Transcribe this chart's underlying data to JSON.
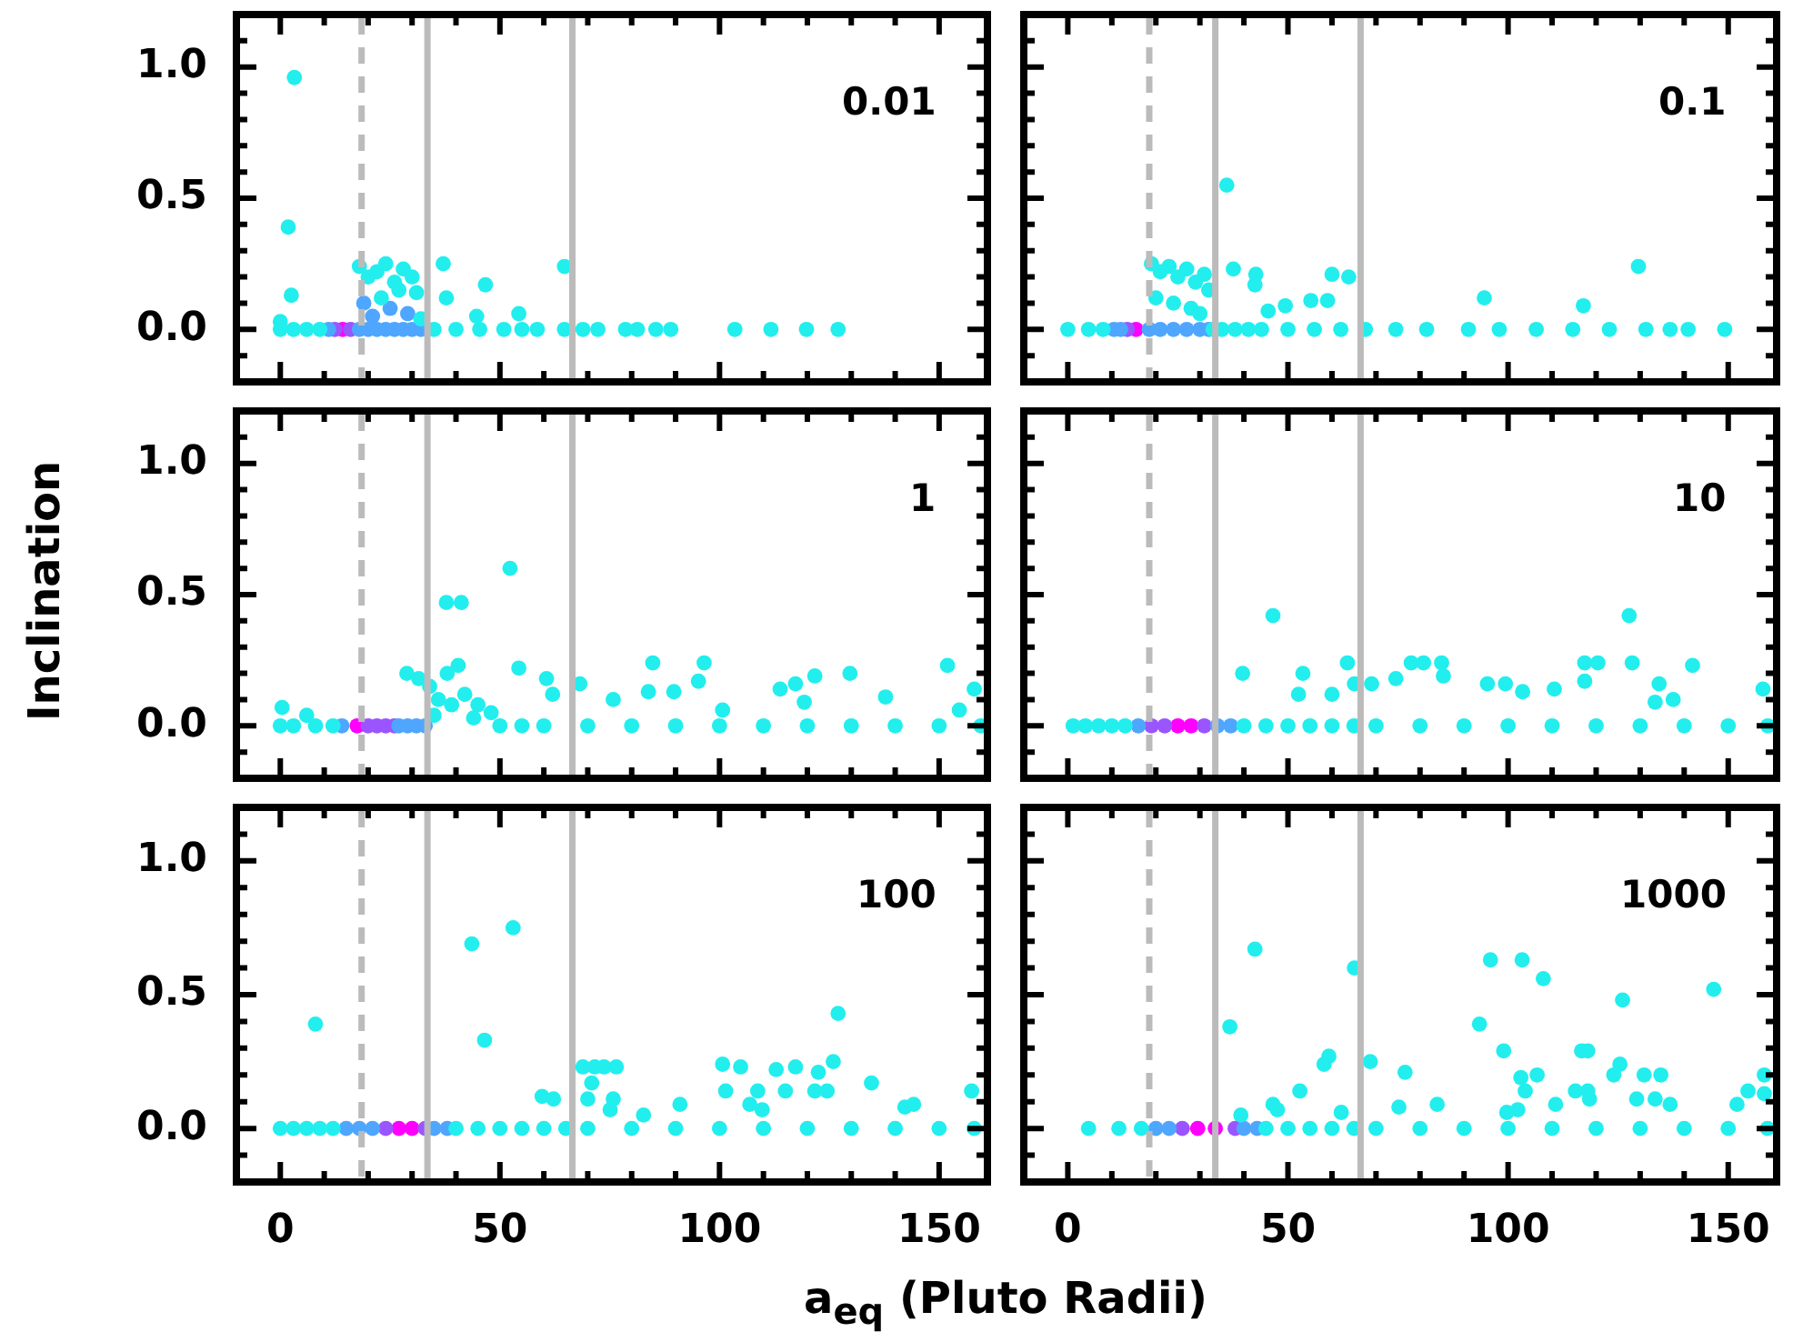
{
  "chart_data": [
    {
      "type": "scatter",
      "annotations": [
        "0.01"
      ],
      "xlim": [
        -10,
        161
      ],
      "ylim": [
        -0.2,
        1.2
      ],
      "xticks": [
        0,
        {
          "value": 10,
          "label": null
        },
        {
          "value": 20,
          "label": null
        },
        {
          "value": 30,
          "label": null
        },
        {
          "value": 40,
          "label": null
        },
        50,
        {
          "value": 60,
          "label": null
        },
        {
          "value": 70,
          "label": null
        },
        {
          "value": 80,
          "label": null
        },
        {
          "value": 90,
          "label": null
        },
        100,
        {
          "value": 110,
          "label": null
        },
        {
          "value": 120,
          "label": null
        },
        {
          "value": 130,
          "label": null
        },
        {
          "value": 140,
          "label": null
        },
        150
      ],
      "yticks": [
        {
          "value": -0.1,
          "label": null
        },
        {
          "value": 0,
          "label": "0.0"
        },
        {
          "value": 0.1,
          "label": null
        },
        {
          "value": 0.2,
          "label": null
        },
        {
          "value": 0.3,
          "label": null
        },
        {
          "value": 0.4,
          "label": null
        },
        {
          "value": 0.5,
          "label": "0.5"
        },
        {
          "value": 0.6,
          "label": null
        },
        {
          "value": 0.7,
          "label": null
        },
        {
          "value": 0.8,
          "label": null
        },
        {
          "value": 0.9,
          "label": null
        },
        {
          "value": 1,
          "label": "1.0"
        },
        {
          "value": 1.1,
          "label": null
        }
      ],
      "tick_labels": "y",
      "marker": "circle",
      "legend": false,
      "ref_lines": [
        {
          "axis": "x",
          "value": 18.5,
          "color": "#bbbbbb",
          "line_style": "dashed"
        },
        {
          "axis": "x",
          "value": 33.5,
          "color": "#bbbbbb"
        },
        {
          "axis": "x",
          "value": 66.5,
          "color": "#bbbbbb"
        }
      ],
      "series": [
        {
          "color": "#22eeee",
          "x": [
            3.2,
            1.8,
            2.5,
            0,
            0,
            3,
            6,
            9,
            18,
            20,
            22,
            24,
            26,
            28,
            30,
            31,
            23,
            27,
            32,
            37.1,
            37.8,
            46.7,
            44.7,
            54.3,
            64.7,
            35,
            40,
            45.4,
            50.9,
            55,
            58.5,
            64.7,
            68.9,
            72.3,
            78.6,
            81.3,
            85.5,
            88.9,
            103.5,
            111.7,
            119.8,
            127
          ],
          "values": [
            0.96,
            0.39,
            0.13,
            0.03,
            0,
            0,
            0,
            0,
            0.24,
            0.2,
            0.22,
            0.25,
            0.18,
            0.23,
            0.2,
            0.14,
            0.12,
            0.15,
            0.04,
            0.25,
            0.12,
            0.17,
            0.05,
            0.06,
            0.24,
            0,
            0,
            0,
            0,
            0,
            0,
            0,
            0,
            0,
            0,
            0,
            0,
            0,
            0,
            0,
            0,
            0
          ]
        },
        {
          "color": "#4fa6ff",
          "x": [
            11,
            18,
            20,
            22,
            24,
            26,
            28,
            30,
            32,
            19,
            21,
            25,
            29
          ],
          "values": [
            0,
            0,
            0,
            0,
            0,
            0,
            0,
            0,
            0,
            0.1,
            0.05,
            0.08,
            0.06
          ]
        },
        {
          "color": "#9a55ff",
          "x": [
            12.4,
            16
          ],
          "values": [
            0,
            0
          ]
        },
        {
          "color": "#ff00ff",
          "x": [
            14.2
          ],
          "values": [
            0
          ]
        }
      ]
    },
    {
      "type": "scatter",
      "annotations": [
        "0.1"
      ],
      "xlim": [
        -10,
        161
      ],
      "ylim": [
        -0.2,
        1.2
      ],
      "xticks": [
        0,
        {
          "value": 10,
          "label": null
        },
        {
          "value": 20,
          "label": null
        },
        {
          "value": 30,
          "label": null
        },
        {
          "value": 40,
          "label": null
        },
        50,
        {
          "value": 60,
          "label": null
        },
        {
          "value": 70,
          "label": null
        },
        {
          "value": 80,
          "label": null
        },
        {
          "value": 90,
          "label": null
        },
        100,
        {
          "value": 110,
          "label": null
        },
        {
          "value": 120,
          "label": null
        },
        {
          "value": 130,
          "label": null
        },
        {
          "value": 140,
          "label": null
        },
        150
      ],
      "yticks": [
        {
          "value": -0.1,
          "label": null
        },
        0,
        {
          "value": 0.1,
          "label": null
        },
        {
          "value": 0.2,
          "label": null
        },
        {
          "value": 0.3,
          "label": null
        },
        {
          "value": 0.4,
          "label": null
        },
        0.5,
        {
          "value": 0.6,
          "label": null
        },
        {
          "value": 0.7,
          "label": null
        },
        {
          "value": 0.8,
          "label": null
        },
        {
          "value": 0.9,
          "label": null
        },
        1,
        {
          "value": 1.1,
          "label": null
        }
      ],
      "tick_labels": false,
      "marker": "circle",
      "legend": false,
      "ref_lines": [
        {
          "axis": "x",
          "value": 18.5,
          "color": "#bbbbbb",
          "line_style": "dashed"
        },
        {
          "axis": "x",
          "value": 33.5,
          "color": "#bbbbbb"
        },
        {
          "axis": "x",
          "value": 66.5,
          "color": "#bbbbbb"
        }
      ],
      "series": [
        {
          "color": "#22eeee",
          "x": [
            0,
            4.7,
            8,
            36.1,
            37.6,
            42.7,
            42.5,
            49.4,
            55.2,
            60,
            63.8,
            59,
            45.5,
            94.6,
            117.1,
            129.6,
            149.2,
            19,
            21,
            23,
            25,
            27,
            29,
            31,
            32,
            20,
            24,
            28,
            30,
            33,
            35,
            38,
            41,
            44,
            50,
            56,
            62,
            67.6,
            74.5,
            81.5,
            91,
            98,
            106.4,
            114.7,
            123,
            131.3,
            136.8,
            140.9
          ],
          "values": [
            0,
            0,
            0,
            0.55,
            0.23,
            0.21,
            0.17,
            0.09,
            0.11,
            0.21,
            0.2,
            0.11,
            0.07,
            0.12,
            0.09,
            0.24,
            0,
            0.25,
            0.22,
            0.24,
            0.2,
            0.23,
            0.18,
            0.21,
            0.15,
            0.12,
            0.1,
            0.08,
            0.06,
            0,
            0,
            0,
            0,
            0,
            0,
            0,
            0,
            0,
            0,
            0,
            0,
            0,
            0,
            0,
            0,
            0,
            0,
            0
          ]
        },
        {
          "color": "#4fa6ff",
          "x": [
            10.5,
            12,
            18.5,
            21,
            24,
            27,
            30,
            32
          ],
          "values": [
            0,
            0,
            0,
            0,
            0,
            0,
            0,
            0
          ]
        },
        {
          "color": "#9a55ff",
          "x": [
            13.5
          ],
          "values": [
            0
          ]
        },
        {
          "color": "#ff00ff",
          "x": [
            15.5
          ],
          "values": [
            0
          ]
        }
      ]
    },
    {
      "type": "scatter",
      "annotations": [
        "1"
      ],
      "ylabel": "Inclination",
      "xlim": [
        -10,
        161
      ],
      "ylim": [
        -0.2,
        1.2
      ],
      "xticks": [
        0,
        {
          "value": 10,
          "label": null
        },
        {
          "value": 20,
          "label": null
        },
        {
          "value": 30,
          "label": null
        },
        {
          "value": 40,
          "label": null
        },
        50,
        {
          "value": 60,
          "label": null
        },
        {
          "value": 70,
          "label": null
        },
        {
          "value": 80,
          "label": null
        },
        {
          "value": 90,
          "label": null
        },
        100,
        {
          "value": 110,
          "label": null
        },
        {
          "value": 120,
          "label": null
        },
        {
          "value": 130,
          "label": null
        },
        {
          "value": 140,
          "label": null
        },
        150
      ],
      "yticks": [
        {
          "value": -0.1,
          "label": null
        },
        {
          "value": 0,
          "label": "0.0"
        },
        {
          "value": 0.1,
          "label": null
        },
        {
          "value": 0.2,
          "label": null
        },
        {
          "value": 0.3,
          "label": null
        },
        {
          "value": 0.4,
          "label": null
        },
        {
          "value": 0.5,
          "label": "0.5"
        },
        {
          "value": 0.6,
          "label": null
        },
        {
          "value": 0.7,
          "label": null
        },
        {
          "value": 0.8,
          "label": null
        },
        {
          "value": 0.9,
          "label": null
        },
        {
          "value": 1,
          "label": "1.0"
        },
        {
          "value": 1.1,
          "label": null
        }
      ],
      "tick_labels": "y",
      "marker": "circle",
      "legend": false,
      "ref_lines": [
        {
          "axis": "x",
          "value": 18.5,
          "color": "#bbbbbb",
          "line_style": "dashed"
        },
        {
          "axis": "x",
          "value": 33.5,
          "color": "#bbbbbb"
        },
        {
          "axis": "x",
          "value": 66.5,
          "color": "#bbbbbb"
        }
      ],
      "series": [
        {
          "color": "#22eeee",
          "x": [
            0.4,
            6,
            0,
            3,
            8,
            12,
            52.3,
            37.8,
            41.2,
            28.8,
            31.5,
            40.5,
            54.3,
            60.6,
            62,
            68.2,
            84.8,
            96.5,
            95.2,
            89.6,
            83.8,
            75.8,
            100.7,
            113.8,
            117.3,
            121.7,
            129.7,
            119.3,
            137.8,
            151.9,
            158,
            154.6,
            34,
            36,
            38,
            42,
            45,
            48,
            35,
            39,
            44,
            50,
            55,
            60,
            70,
            80,
            90,
            100,
            110,
            120,
            130,
            140,
            150,
            159.5
          ],
          "values": [
            0.07,
            0.04,
            0,
            0,
            0,
            0,
            0.6,
            0.47,
            0.47,
            0.2,
            0.18,
            0.23,
            0.22,
            0.18,
            0.12,
            0.16,
            0.24,
            0.24,
            0.17,
            0.13,
            0.13,
            0.1,
            0.06,
            0.14,
            0.16,
            0.19,
            0.2,
            0.09,
            0.11,
            0.23,
            0.14,
            0.06,
            0.15,
            0.1,
            0.2,
            0.12,
            0.08,
            0.05,
            0.04,
            0.08,
            0.03,
            0,
            0,
            0,
            0,
            0,
            0,
            0,
            0,
            0,
            0,
            0,
            0,
            0
          ]
        },
        {
          "color": "#4fa6ff",
          "x": [
            14,
            27,
            29,
            31,
            33
          ],
          "values": [
            0,
            0,
            0,
            0,
            0
          ]
        },
        {
          "color": "#9a55ff",
          "x": [
            20,
            22,
            24,
            26
          ],
          "values": [
            0,
            0,
            0,
            0
          ]
        },
        {
          "color": "#ff00ff",
          "x": [
            17.5
          ],
          "values": [
            0
          ]
        }
      ]
    },
    {
      "type": "scatter",
      "annotations": [
        "10"
      ],
      "xlim": [
        -10,
        161
      ],
      "ylim": [
        -0.2,
        1.2
      ],
      "xticks": [
        0,
        {
          "value": 10,
          "label": null
        },
        {
          "value": 20,
          "label": null
        },
        {
          "value": 30,
          "label": null
        },
        {
          "value": 40,
          "label": null
        },
        50,
        {
          "value": 60,
          "label": null
        },
        {
          "value": 70,
          "label": null
        },
        {
          "value": 80,
          "label": null
        },
        {
          "value": 90,
          "label": null
        },
        100,
        {
          "value": 110,
          "label": null
        },
        {
          "value": 120,
          "label": null
        },
        {
          "value": 130,
          "label": null
        },
        {
          "value": 140,
          "label": null
        },
        150
      ],
      "yticks": [
        {
          "value": -0.1,
          "label": null
        },
        0,
        {
          "value": 0.1,
          "label": null
        },
        {
          "value": 0.2,
          "label": null
        },
        {
          "value": 0.3,
          "label": null
        },
        {
          "value": 0.4,
          "label": null
        },
        0.5,
        {
          "value": 0.6,
          "label": null
        },
        {
          "value": 0.7,
          "label": null
        },
        {
          "value": 0.8,
          "label": null
        },
        {
          "value": 0.9,
          "label": null
        },
        1,
        {
          "value": 1.1,
          "label": null
        }
      ],
      "tick_labels": false,
      "marker": "circle",
      "legend": false,
      "ref_lines": [
        {
          "axis": "x",
          "value": 18.5,
          "color": "#bbbbbb",
          "line_style": "dashed"
        },
        {
          "axis": "x",
          "value": 33.5,
          "color": "#bbbbbb"
        },
        {
          "axis": "x",
          "value": 66.5,
          "color": "#bbbbbb"
        }
      ],
      "series": [
        {
          "color": "#22eeee",
          "x": [
            1.2,
            4,
            7,
            10,
            13,
            46.6,
            127.5,
            39.7,
            53.4,
            52.4,
            60,
            63.5,
            65.1,
            69,
            74.5,
            78,
            80.8,
            84.9,
            85.3,
            95.3,
            99.4,
            103.3,
            110.5,
            117.4,
            120.4,
            117.4,
            128.2,
            141.9,
            134.3,
            133.4,
            137.5,
            157.9,
            40,
            45,
            50,
            55,
            60,
            65,
            70,
            80,
            90,
            100,
            110,
            120,
            130,
            140,
            150,
            159
          ],
          "values": [
            0,
            0,
            0,
            0,
            0,
            0.42,
            0.42,
            0.2,
            0.2,
            0.12,
            0.12,
            0.24,
            0.16,
            0.16,
            0.18,
            0.24,
            0.24,
            0.24,
            0.19,
            0.16,
            0.16,
            0.13,
            0.14,
            0.24,
            0.24,
            0.17,
            0.24,
            0.23,
            0.16,
            0.09,
            0.1,
            0.14,
            0,
            0,
            0,
            0,
            0,
            0,
            0,
            0,
            0,
            0,
            0,
            0,
            0,
            0,
            0,
            0
          ]
        },
        {
          "color": "#4fa6ff",
          "x": [
            16,
            34,
            37
          ],
          "values": [
            0,
            0,
            0
          ]
        },
        {
          "color": "#9a55ff",
          "x": [
            19,
            22,
            31
          ],
          "values": [
            0,
            0,
            0
          ]
        },
        {
          "color": "#ff00ff",
          "x": [
            25,
            28
          ],
          "values": [
            0,
            0
          ]
        }
      ]
    },
    {
      "type": "scatter",
      "annotations": [
        "100"
      ],
      "xlabel": "a$_{eq}$ (Pluto Radii)",
      "xlim": [
        -10,
        161
      ],
      "ylim": [
        -0.2,
        1.2
      ],
      "xticks": [
        0,
        {
          "value": 10,
          "label": null
        },
        {
          "value": 20,
          "label": null
        },
        {
          "value": 30,
          "label": null
        },
        {
          "value": 40,
          "label": null
        },
        50,
        {
          "value": 60,
          "label": null
        },
        {
          "value": 70,
          "label": null
        },
        {
          "value": 80,
          "label": null
        },
        {
          "value": 90,
          "label": null
        },
        100,
        {
          "value": 110,
          "label": null
        },
        {
          "value": 120,
          "label": null
        },
        {
          "value": 130,
          "label": null
        },
        {
          "value": 140,
          "label": null
        },
        150
      ],
      "yticks": [
        {
          "value": -0.1,
          "label": null
        },
        {
          "value": 0,
          "label": "0.0"
        },
        {
          "value": 0.1,
          "label": null
        },
        {
          "value": 0.2,
          "label": null
        },
        {
          "value": 0.3,
          "label": null
        },
        {
          "value": 0.4,
          "label": null
        },
        {
          "value": 0.5,
          "label": "0.5"
        },
        {
          "value": 0.6,
          "label": null
        },
        {
          "value": 0.7,
          "label": null
        },
        {
          "value": 0.8,
          "label": null
        },
        {
          "value": 0.9,
          "label": null
        },
        {
          "value": 1,
          "label": "1.0"
        },
        {
          "value": 1.1,
          "label": null
        }
      ],
      "marker": "circle",
      "legend": false,
      "ref_lines": [
        {
          "axis": "x",
          "value": 18.5,
          "color": "#bbbbbb",
          "line_style": "dashed"
        },
        {
          "axis": "x",
          "value": 33.5,
          "color": "#bbbbbb"
        },
        {
          "axis": "x",
          "value": 66.5,
          "color": "#bbbbbb"
        }
      ],
      "series": [
        {
          "color": "#22eeee",
          "x": [
            0,
            3,
            6,
            9,
            12,
            8,
            43.6,
            53,
            46.5,
            59.6,
            62.2,
            68.9,
            71.6,
            73.7,
            76.5,
            70.9,
            70,
            75.8,
            75.1,
            82.7,
            91,
            100.7,
            104.8,
            101.4,
            108.7,
            112.9,
            117.3,
            115,
            122.5,
            125.9,
            127,
            121.7,
            124.5,
            134.6,
            157.4,
            142.2,
            144.2,
            106.9,
            109.7,
            40,
            45,
            50,
            55,
            60,
            65,
            70,
            80,
            90,
            100,
            110,
            120,
            130,
            140,
            150,
            158
          ],
          "values": [
            0,
            0,
            0,
            0,
            0,
            0.39,
            0.69,
            0.75,
            0.33,
            0.12,
            0.11,
            0.23,
            0.23,
            0.23,
            0.23,
            0.17,
            0.11,
            0.11,
            0.07,
            0.05,
            0.09,
            0.24,
            0.23,
            0.14,
            0.14,
            0.22,
            0.23,
            0.14,
            0.21,
            0.25,
            0.43,
            0.14,
            0.14,
            0.17,
            0.14,
            0.08,
            0.09,
            0.09,
            0.07,
            0,
            0,
            0,
            0,
            0,
            0,
            0,
            0,
            0,
            0,
            0,
            0,
            0,
            0,
            0,
            0
          ]
        },
        {
          "color": "#4fa6ff",
          "x": [
            15,
            18,
            21,
            35,
            38
          ],
          "values": [
            0,
            0,
            0,
            0,
            0
          ]
        },
        {
          "color": "#9a55ff",
          "x": [
            24,
            33
          ],
          "values": [
            0,
            0
          ]
        },
        {
          "color": "#ff00ff",
          "x": [
            27,
            30
          ],
          "values": [
            0,
            0
          ]
        }
      ]
    },
    {
      "type": "scatter",
      "annotations": [
        "1000"
      ],
      "xlim": [
        -10,
        161
      ],
      "ylim": [
        -0.2,
        1.2
      ],
      "xticks": [
        0,
        {
          "value": 10,
          "label": null
        },
        {
          "value": 20,
          "label": null
        },
        {
          "value": 30,
          "label": null
        },
        {
          "value": 40,
          "label": null
        },
        50,
        {
          "value": 60,
          "label": null
        },
        {
          "value": 70,
          "label": null
        },
        {
          "value": 80,
          "label": null
        },
        {
          "value": 90,
          "label": null
        },
        100,
        {
          "value": 110,
          "label": null
        },
        {
          "value": 120,
          "label": null
        },
        {
          "value": 130,
          "label": null
        },
        {
          "value": 140,
          "label": null
        },
        150
      ],
      "yticks": [
        {
          "value": -0.1,
          "label": null
        },
        0,
        {
          "value": 0.1,
          "label": null
        },
        {
          "value": 0.2,
          "label": null
        },
        {
          "value": 0.3,
          "label": null
        },
        {
          "value": 0.4,
          "label": null
        },
        0.5,
        {
          "value": 0.6,
          "label": null
        },
        {
          "value": 0.7,
          "label": null
        },
        {
          "value": 0.8,
          "label": null
        },
        {
          "value": 0.9,
          "label": null
        },
        1,
        {
          "value": 1.1,
          "label": null
        }
      ],
      "tick_labels": "x",
      "marker": "circle",
      "legend": false,
      "ref_lines": [
        {
          "axis": "x",
          "value": 18.5,
          "color": "#bbbbbb",
          "line_style": "dashed"
        },
        {
          "axis": "x",
          "value": 33.5,
          "color": "#bbbbbb"
        },
        {
          "axis": "x",
          "value": 66.5,
          "color": "#bbbbbb"
        }
      ],
      "series": [
        {
          "color": "#22eeee",
          "x": [
            4.7,
            11.6,
            16.7,
            42.5,
            65.1,
            36.8,
            96,
            103.2,
            108,
            126,
            146.7,
            93.5,
            99,
            59.3,
            58.2,
            68.7,
            76.6,
            52.7,
            46.6,
            47.6,
            39.3,
            62.1,
            75.2,
            83.9,
            102.9,
            106.6,
            103.9,
            110.8,
            116.7,
            118.1,
            124,
            125.4,
            115.3,
            118.1,
            118.5,
            130.9,
            134.7,
            129.2,
            133.4,
            136.8,
            154.5,
            158.2,
            158.2,
            152,
            99.7,
            102.2,
            45,
            50,
            55,
            60,
            65,
            70,
            80,
            90,
            100,
            110,
            120,
            130,
            140,
            150,
            158.9
          ],
          "values": [
            0,
            0,
            0,
            0.67,
            0.6,
            0.38,
            0.63,
            0.63,
            0.56,
            0.48,
            0.52,
            0.39,
            0.29,
            0.27,
            0.24,
            0.25,
            0.21,
            0.14,
            0.09,
            0.07,
            0.05,
            0.06,
            0.08,
            0.09,
            0.19,
            0.2,
            0.14,
            0.09,
            0.29,
            0.29,
            0.2,
            0.24,
            0.14,
            0.14,
            0.11,
            0.2,
            0.2,
            0.11,
            0.11,
            0.09,
            0.14,
            0.2,
            0.13,
            0.09,
            0.06,
            0.07,
            0,
            0,
            0,
            0,
            0,
            0,
            0,
            0,
            0,
            0,
            0,
            0,
            0,
            0,
            0
          ]
        },
        {
          "color": "#4fa6ff",
          "x": [
            20,
            23,
            40,
            43
          ],
          "values": [
            0,
            0,
            0,
            0
          ]
        },
        {
          "color": "#9a55ff",
          "x": [
            26,
            38
          ],
          "values": [
            0,
            0
          ]
        },
        {
          "color": "#ff00ff",
          "x": [
            29.5,
            33.5
          ],
          "values": [
            0,
            0
          ]
        }
      ]
    }
  ]
}
